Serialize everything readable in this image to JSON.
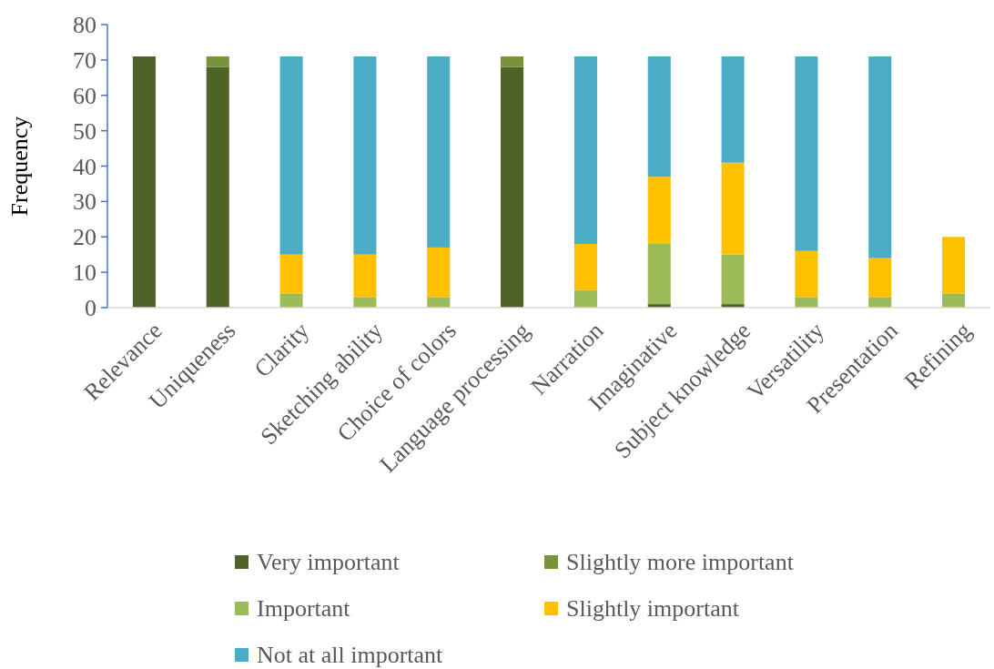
{
  "chart_data": {
    "type": "bar",
    "stacked": true,
    "ylabel": "Frequency",
    "categories": [
      "Relevance",
      "Uniqueness",
      "Clarity",
      "Sketching ability",
      "Choice of colors",
      "Language processing",
      "Narration",
      "Imaginative",
      "Subject knowledge",
      "Versatility",
      "Presentation",
      "Refining"
    ],
    "series": [
      {
        "name": "Very important",
        "color": "#4f6228",
        "values": [
          71,
          68,
          0,
          0,
          0,
          68,
          0,
          1,
          1,
          0,
          0,
          0
        ]
      },
      {
        "name": "Slightly more important",
        "color": "#77933c",
        "values": [
          0,
          3,
          0,
          0,
          0,
          3,
          0,
          0,
          0,
          0,
          0,
          0
        ]
      },
      {
        "name": "Important",
        "color": "#9bbb59",
        "values": [
          0,
          0,
          4,
          3,
          3,
          0,
          5,
          17,
          14,
          3,
          3,
          4
        ]
      },
      {
        "name": "Slightly important",
        "color": "#ffc000",
        "values": [
          0,
          0,
          11,
          12,
          14,
          0,
          13,
          19,
          26,
          13,
          11,
          16
        ]
      },
      {
        "name": "Not at all important",
        "color": "#4bacc6",
        "values": [
          0,
          0,
          56,
          56,
          54,
          0,
          53,
          34,
          30,
          55,
          57,
          0
        ]
      }
    ],
    "ylim": [
      0,
      80
    ],
    "yticks": [
      0,
      10,
      20,
      30,
      40,
      50,
      60,
      70,
      80
    ],
    "grid": false,
    "legend": "bottom"
  }
}
